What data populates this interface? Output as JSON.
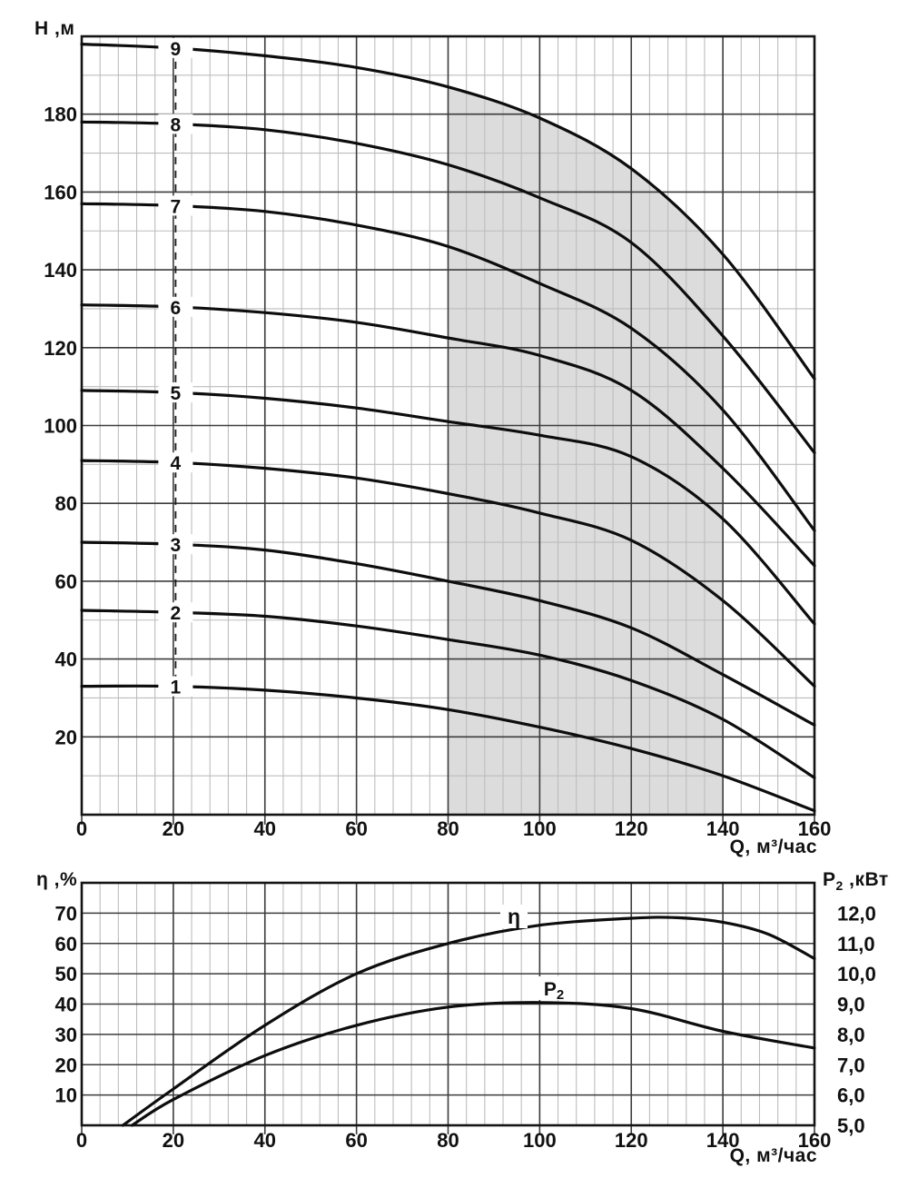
{
  "page": {
    "background": "#ffffff"
  },
  "colors": {
    "curve": "#0d0d0d",
    "grid_major": "#3c3c3c",
    "grid_minor": "#bdbdbd",
    "border": "#141414",
    "band": "#dcdcdc",
    "text": "#111111",
    "label_line": "#1a1a1a"
  },
  "chart_data": [
    {
      "id": "head-capacity",
      "type": "line",
      "ylabel": "H ,м",
      "xlabel": "Q, м³/час",
      "xlim": [
        0,
        160
      ],
      "ylim": [
        0,
        200
      ],
      "grid": {
        "x_major": 20,
        "x_minor": 4,
        "y_major": 20,
        "y_minor": 10
      },
      "x": [
        0,
        20,
        40,
        60,
        80,
        100,
        120,
        140,
        160
      ],
      "x_tick_values": [
        0,
        20,
        40,
        60,
        80,
        100,
        120,
        140,
        160
      ],
      "x_tick_labels": [
        "0",
        "20",
        "40",
        "60",
        "80",
        "100",
        "120",
        "140",
        "160"
      ],
      "y_tick_values": [
        180,
        160,
        140,
        120,
        100,
        80,
        60,
        40,
        20
      ],
      "y_tick_labels": [
        "180",
        "160",
        "140",
        "120",
        "100",
        "80",
        "60",
        "40",
        "20"
      ],
      "series": [
        {
          "name": "9",
          "values": [
            198,
            197,
            195,
            192,
            187,
            179,
            166,
            144,
            112
          ]
        },
        {
          "name": "8",
          "values": [
            178,
            177.5,
            176,
            172.5,
            167,
            158.5,
            147,
            123,
            93
          ]
        },
        {
          "name": "7",
          "values": [
            157,
            156.5,
            155,
            151.5,
            146,
            136.5,
            125,
            104,
            73
          ]
        },
        {
          "name": "6",
          "values": [
            131,
            130.5,
            129,
            126.5,
            122.5,
            118,
            109,
            89,
            64
          ]
        },
        {
          "name": "5",
          "values": [
            109,
            108.5,
            107,
            104.5,
            101,
            97.5,
            92,
            76,
            49
          ]
        },
        {
          "name": "4",
          "values": [
            91,
            90.5,
            89,
            86.5,
            82.5,
            77.5,
            70.5,
            55,
            33
          ]
        },
        {
          "name": "3",
          "values": [
            70,
            69.5,
            68,
            64.5,
            60,
            55,
            48,
            36,
            23
          ]
        },
        {
          "name": "2",
          "values": [
            52.5,
            52,
            51,
            48.5,
            45,
            41,
            34.5,
            24.5,
            9.5
          ]
        },
        {
          "name": "1",
          "values": [
            33,
            33,
            32,
            30,
            27,
            22.5,
            17,
            10,
            1
          ]
        }
      ],
      "series_label_q": 20.5,
      "operating_band": {
        "q_from": 80,
        "q_to": 140
      }
    },
    {
      "id": "efficiency-power",
      "type": "line",
      "xlabel": "Q, м³/час",
      "xlim": [
        0,
        160
      ],
      "grid": {
        "x_major": 20,
        "x_minor": 4
      },
      "x_tick_values": [
        0,
        20,
        40,
        60,
        80,
        100,
        120,
        140,
        160
      ],
      "x_tick_labels": [
        "0",
        "20",
        "40",
        "60",
        "80",
        "100",
        "120",
        "140",
        "160"
      ],
      "left_axis": {
        "label": "η ,%",
        "lim": [
          0,
          80
        ],
        "tick_values": [
          70,
          60,
          50,
          40,
          30,
          20,
          10
        ],
        "tick_labels": [
          "70",
          "60",
          "50",
          "40",
          "30",
          "20",
          "10"
        ]
      },
      "right_axis": {
        "label_main": "P",
        "label_sub": "2",
        "label_rest": " ,кВт",
        "lim": [
          5,
          13
        ],
        "tick_values": [
          12,
          11,
          10,
          9,
          8,
          7,
          6,
          5
        ],
        "tick_labels": [
          "12,0",
          "11,0",
          "10,0",
          "9,0",
          "8,0",
          "7,0",
          "6,0",
          "5,0"
        ]
      },
      "series": [
        {
          "name": "η",
          "axis": "left",
          "points": [
            [
              9,
              0
            ],
            [
              20,
              12
            ],
            [
              40,
              33
            ],
            [
              60,
              50
            ],
            [
              80,
              60
            ],
            [
              100,
              66
            ],
            [
              120,
              68.3
            ],
            [
              130,
              68.5
            ],
            [
              140,
              67
            ],
            [
              150,
              63
            ],
            [
              160,
              55
            ]
          ]
        },
        {
          "name_main": "P",
          "name_sub": "2",
          "axis": "right",
          "points": [
            [
              11,
              5
            ],
            [
              20,
              5.85
            ],
            [
              40,
              7.3
            ],
            [
              60,
              8.3
            ],
            [
              80,
              8.9
            ],
            [
              100,
              9.05
            ],
            [
              120,
              8.85
            ],
            [
              140,
              8.1
            ],
            [
              160,
              7.55
            ]
          ]
        }
      ]
    }
  ]
}
